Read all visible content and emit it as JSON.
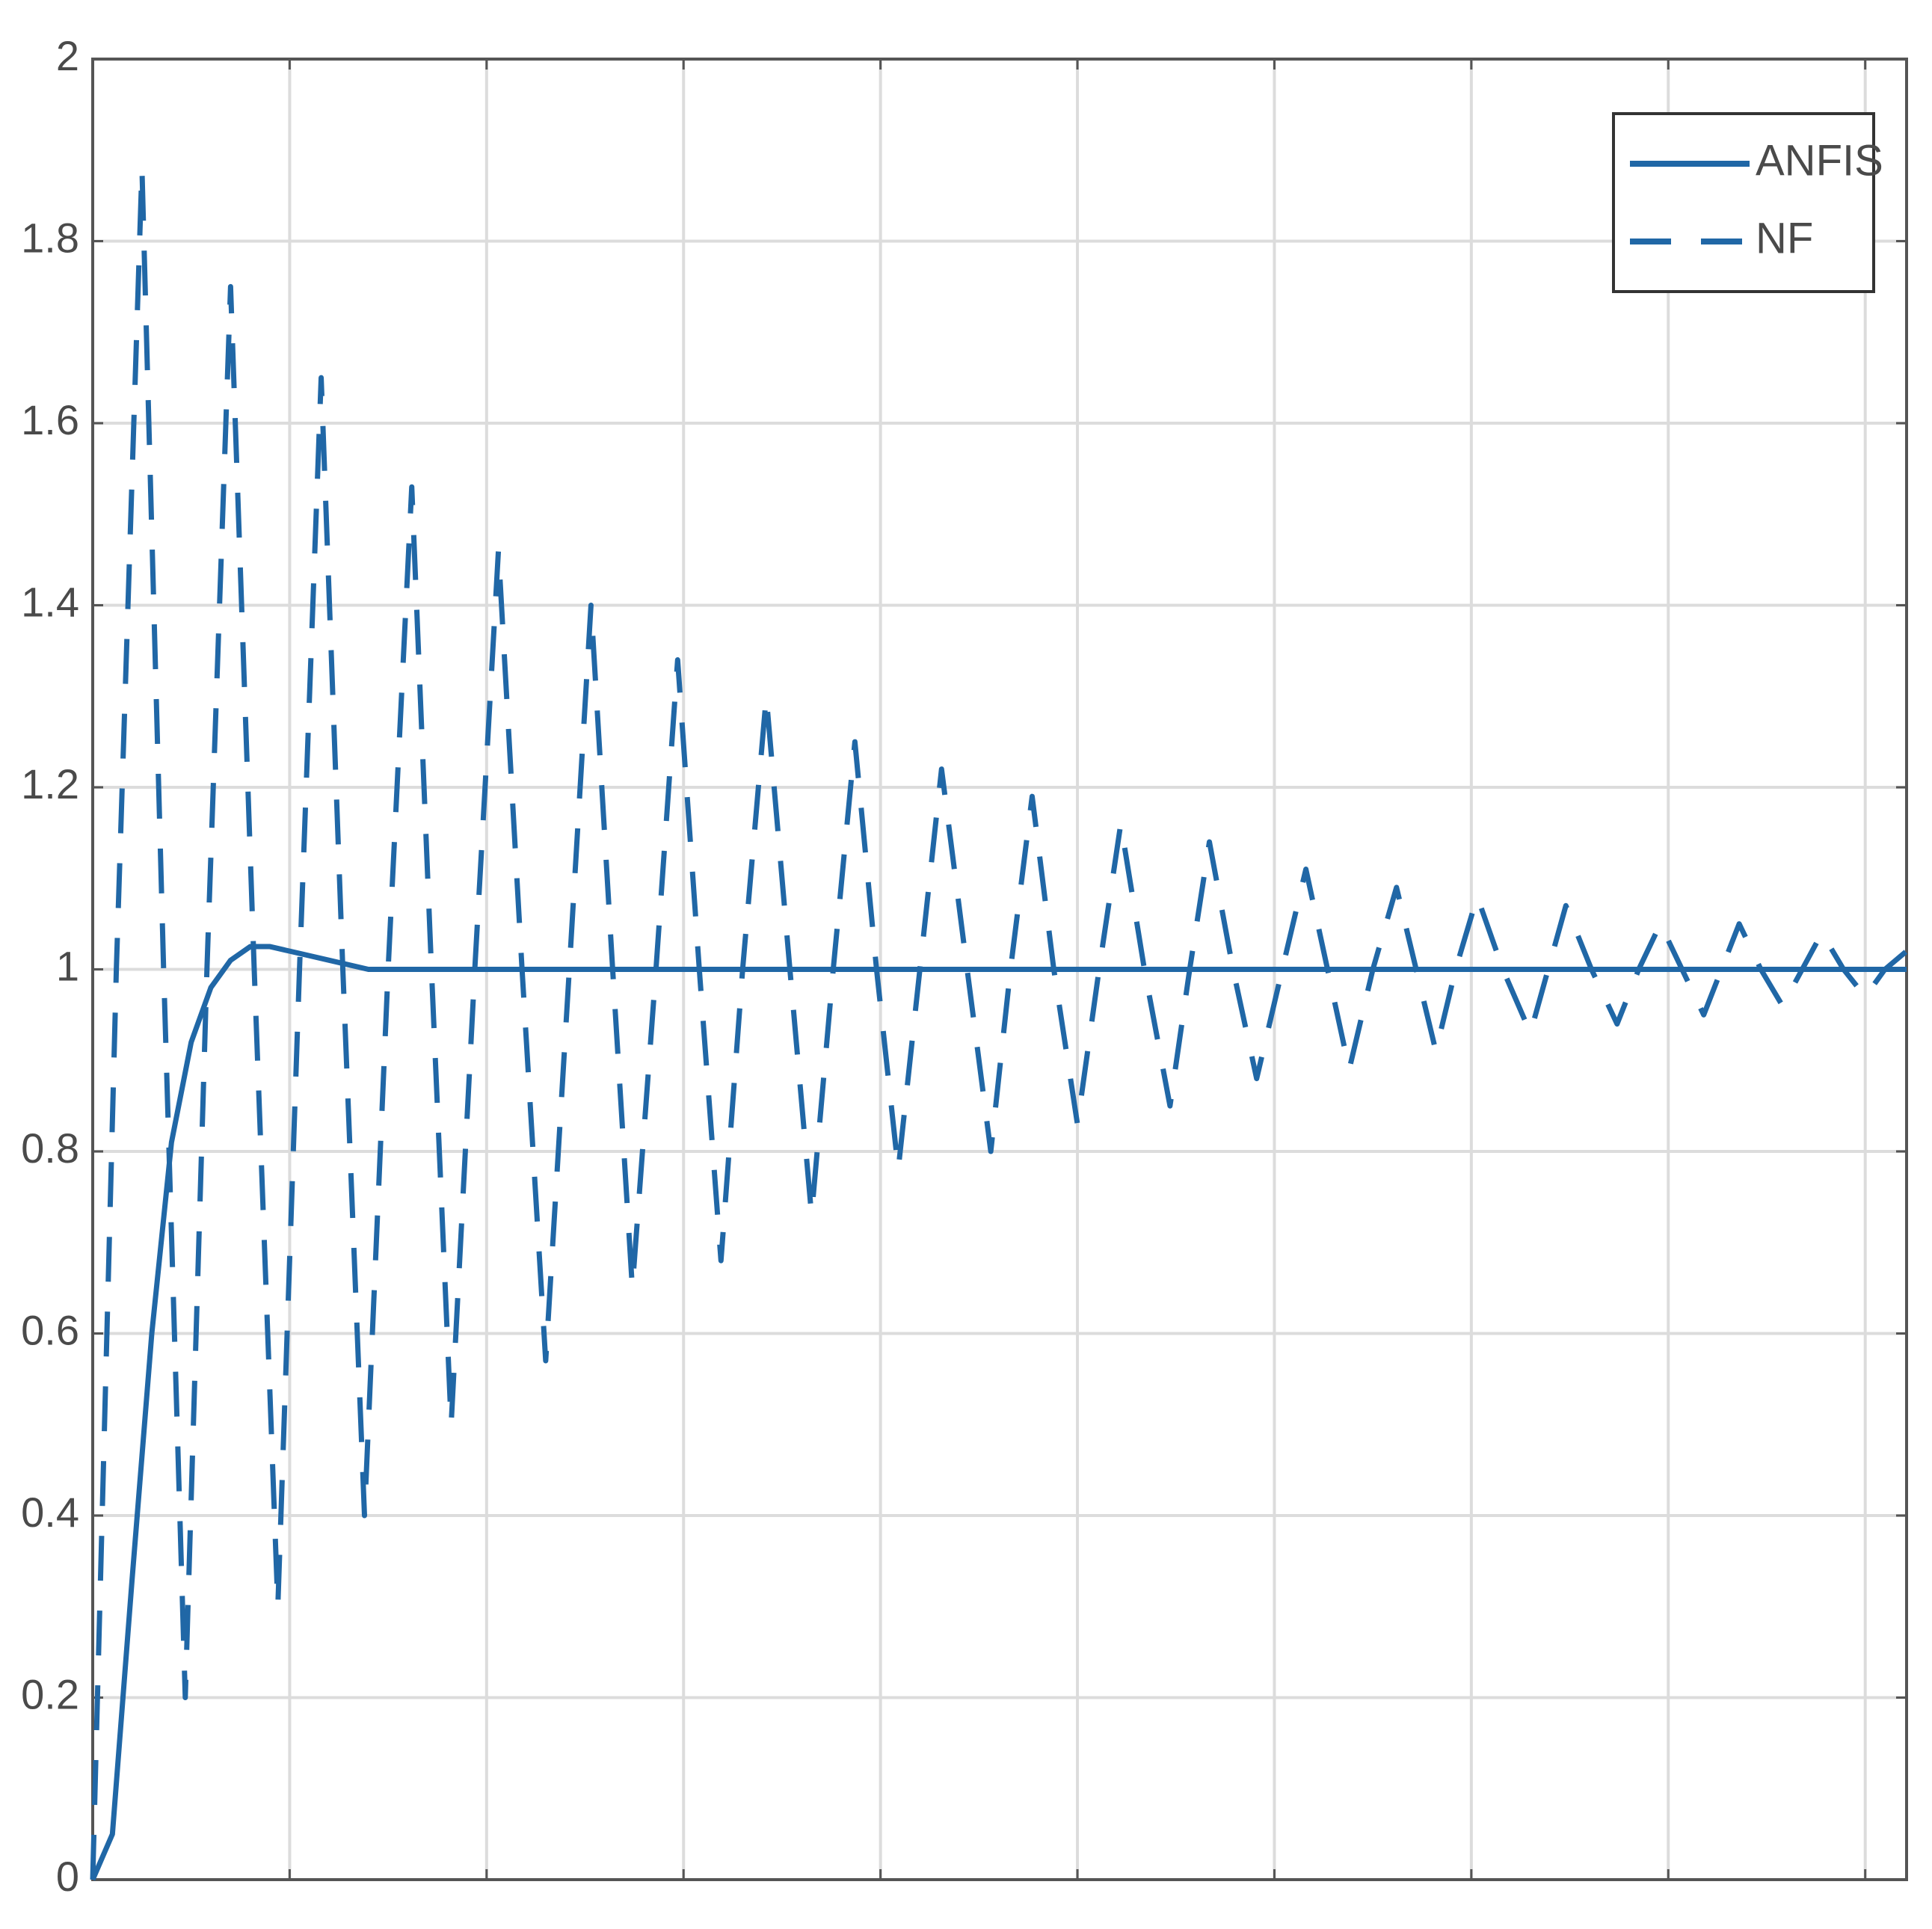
{
  "chart_data": {
    "type": "line",
    "ylim": [
      0,
      2
    ],
    "yticks": [
      0,
      0.2,
      0.4,
      0.6,
      0.8,
      1,
      1.2,
      1.4,
      1.6,
      1.8,
      2
    ],
    "xlim": [
      0,
      9.21
    ],
    "xticks": [
      0,
      1,
      2,
      3,
      4,
      5,
      6,
      7,
      8,
      9
    ],
    "grid": true,
    "legend": "northeast",
    "series": [
      {
        "name": "ANFIS",
        "color": "#2067a6",
        "style": "solid",
        "x": [
          0,
          0.1,
          0.2,
          0.3,
          0.4,
          0.5,
          0.6,
          0.7,
          0.8,
          0.9,
          1.0,
          1.2,
          1.4,
          1.6,
          2,
          3,
          4,
          5,
          6,
          7,
          8,
          9,
          9.21
        ],
        "values": [
          0,
          0.05,
          0.33,
          0.6,
          0.81,
          0.92,
          0.98,
          1.01,
          1.025,
          1.025,
          1.02,
          1.01,
          1.0,
          1,
          1,
          1,
          1,
          1,
          1,
          1,
          1,
          1,
          1
        ]
      },
      {
        "name": "NF",
        "color": "#2067a6",
        "style": "dashed",
        "x": [
          0,
          0.12,
          0.25,
          0.36,
          0.47,
          0.58,
          0.7,
          0.82,
          0.94,
          1.05,
          1.16,
          1.27,
          1.38,
          1.5,
          1.62,
          1.72,
          1.82,
          1.94,
          2.06,
          2.18,
          2.3,
          2.42,
          2.53,
          2.64,
          2.74,
          2.86,
          2.97,
          3.08,
          3.19,
          3.3,
          3.42,
          3.54,
          3.65,
          3.76,
          3.87,
          3.98,
          4.09,
          4.2,
          4.31,
          4.44,
          4.56,
          4.66,
          4.77,
          4.88,
          5.0,
          5.11,
          5.22,
          5.34,
          5.47,
          5.57,
          5.67,
          5.79,
          5.91,
          6.04,
          6.16,
          6.27,
          6.38,
          6.5,
          6.62,
          6.72,
          6.82,
          6.92,
          7.03,
          7.16,
          7.3,
          7.39,
          7.48,
          7.61,
          7.74,
          7.85,
          7.96,
          8.07,
          8.18,
          8.27,
          8.36,
          8.47,
          8.58,
          8.68,
          8.78,
          8.89,
          9.0,
          9.1,
          9.21
        ],
        "values": [
          0,
          1,
          1.88,
          1,
          0.2,
          1,
          1.75,
          1,
          0.3,
          1,
          1.65,
          1,
          0.4,
          1,
          1.53,
          1,
          0.5,
          1,
          1.46,
          1,
          0.57,
          1,
          1.4,
          1,
          0.65,
          1,
          1.34,
          1,
          0.68,
          1,
          1.3,
          1,
          0.73,
          1,
          1.25,
          1,
          0.78,
          1,
          1.22,
          1,
          0.8,
          1,
          1.19,
          1,
          0.83,
          1,
          1.16,
          1,
          0.85,
          1,
          1.14,
          1,
          0.88,
          1,
          1.11,
          1,
          0.89,
          1,
          1.09,
          1,
          0.91,
          1,
          1.08,
          1,
          0.93,
          1,
          1.07,
          1,
          0.94,
          1,
          1.05,
          1,
          0.95,
          1,
          1.05,
          1,
          0.96,
          1,
          1.04,
          1,
          0.97,
          1,
          1.02
        ]
      }
    ]
  }
}
